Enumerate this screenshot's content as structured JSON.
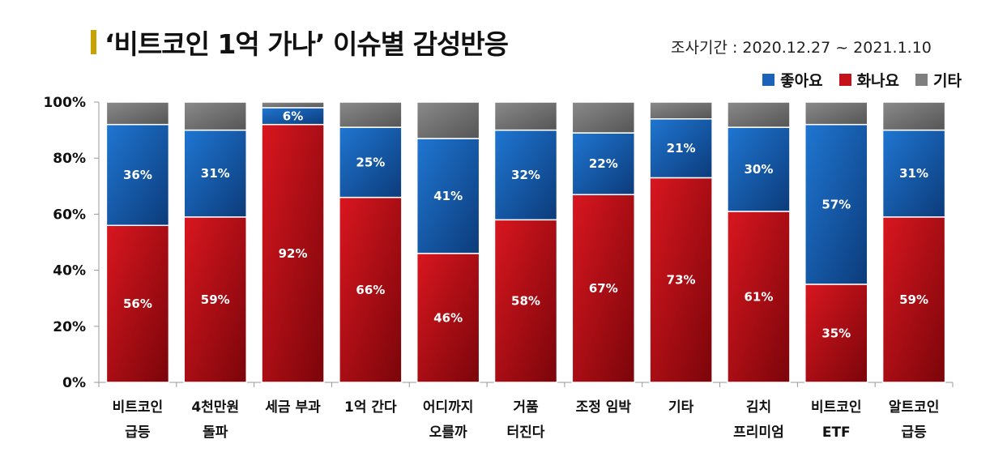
{
  "header": {
    "title": "‘비트코인 1억 가나’ 이슈별 감성반응",
    "period": "조사기간 : 2020.12.27 ~ 2021.1.10"
  },
  "colors": {
    "title_mark": "#c8a200",
    "good": "#1a63b8",
    "bad": "#c4121a",
    "other": "#7f7f7f",
    "axis": "#999999"
  },
  "chart_data": {
    "type": "bar",
    "stacked": true,
    "categories": [
      [
        "비트코인",
        "급등"
      ],
      [
        "4천만원",
        "돌파"
      ],
      [
        "세금 부과"
      ],
      [
        "1억 간다"
      ],
      [
        "어디까지",
        "오를까"
      ],
      [
        "거품",
        "터진다"
      ],
      [
        "조정 임박"
      ],
      [
        "기타"
      ],
      [
        "김치",
        "프리미엄"
      ],
      [
        "비트코인",
        "ETF"
      ],
      [
        "알트코인",
        "급등"
      ]
    ],
    "series": [
      {
        "name": "화나요",
        "color": "#c4121a",
        "values": [
          56,
          59,
          92,
          66,
          46,
          58,
          67,
          73,
          61,
          35,
          59
        ]
      },
      {
        "name": "좋아요",
        "color": "#1a63b8",
        "values": [
          36,
          31,
          6,
          25,
          41,
          32,
          22,
          21,
          30,
          57,
          31
        ]
      },
      {
        "name": "기타",
        "color": "#7f7f7f",
        "values": [
          8,
          10,
          2,
          9,
          13,
          10,
          11,
          6,
          9,
          8,
          10
        ]
      }
    ],
    "data_labels": {
      "화나요": [
        "56%",
        "59%",
        "92%",
        "66%",
        "46%",
        "58%",
        "67%",
        "73%",
        "61%",
        "35%",
        "59%"
      ],
      "좋아요": [
        "36%",
        "31%",
        "6%",
        "25%",
        "41%",
        "32%",
        "22%",
        "21%",
        "30%",
        "57%",
        "31%"
      ]
    },
    "legend": [
      "좋아요",
      "화나요",
      "기타"
    ],
    "legend_position": "top-right",
    "y_ticks": [
      "0%",
      "20%",
      "40%",
      "60%",
      "80%",
      "100%"
    ],
    "ylim": [
      0,
      100
    ],
    "grid": false
  }
}
